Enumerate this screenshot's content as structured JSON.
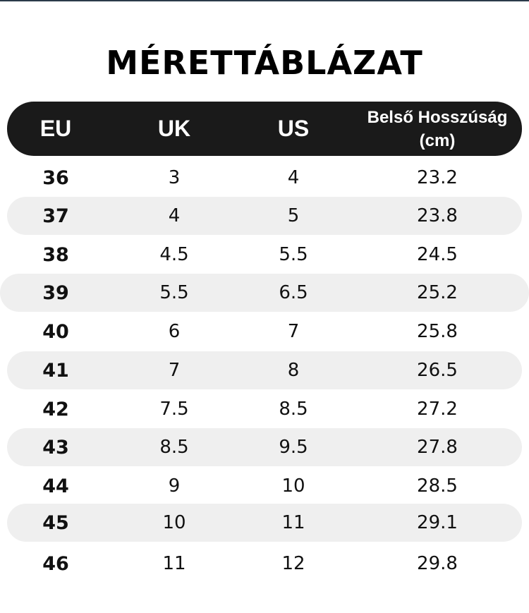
{
  "title": "MÉRETTÁBLÁZAT",
  "headers": {
    "eu": "EU",
    "uk": "UK",
    "us": "US",
    "length_line1": "Belső Hosszúság",
    "length_line2": "(cm)"
  },
  "rows": [
    {
      "eu": "36",
      "uk": "3",
      "us": "4",
      "cm": "23.2"
    },
    {
      "eu": "37",
      "uk": "4",
      "us": "5",
      "cm": "23.8"
    },
    {
      "eu": "38",
      "uk": "4.5",
      "us": "5.5",
      "cm": "24.5"
    },
    {
      "eu": "39",
      "uk": "5.5",
      "us": "6.5",
      "cm": "25.2"
    },
    {
      "eu": "40",
      "uk": "6",
      "us": "7",
      "cm": "25.8"
    },
    {
      "eu": "41",
      "uk": "7",
      "us": "8",
      "cm": "26.5"
    },
    {
      "eu": "42",
      "uk": "7.5",
      "us": "8.5",
      "cm": "27.2"
    },
    {
      "eu": "43",
      "uk": "8.5",
      "us": "9.5",
      "cm": "27.8"
    },
    {
      "eu": "44",
      "uk": "9",
      "us": "10",
      "cm": "28.5"
    },
    {
      "eu": "45",
      "uk": "10",
      "us": "11",
      "cm": "29.1"
    },
    {
      "eu": "46",
      "uk": "11",
      "us": "12",
      "cm": "29.8"
    }
  ]
}
